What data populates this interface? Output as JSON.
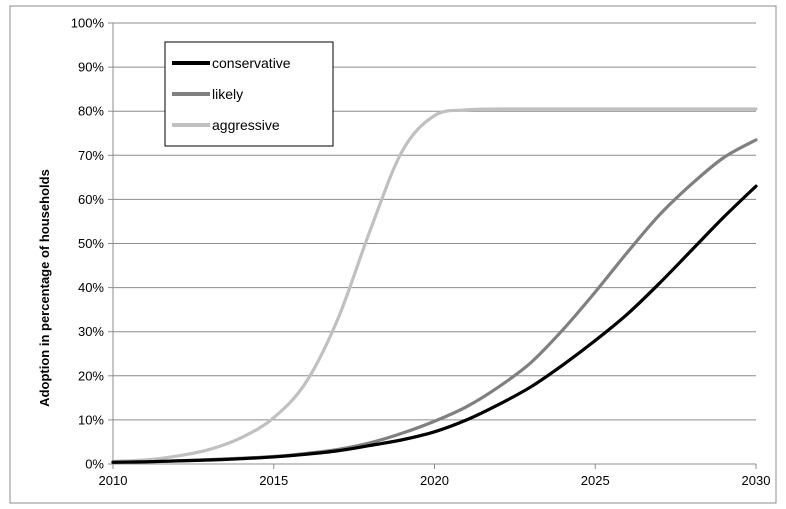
{
  "chart_data": {
    "type": "line",
    "title": "",
    "xlabel": "",
    "ylabel": "Adoption in percentage of households",
    "xlim": [
      2010,
      2030
    ],
    "ylim": [
      0,
      100
    ],
    "x_ticks": [
      2010,
      2015,
      2020,
      2025,
      2030
    ],
    "y_ticks": [
      0,
      10,
      20,
      30,
      40,
      50,
      60,
      70,
      80,
      90,
      100
    ],
    "y_tick_labels": [
      "0%",
      "10%",
      "20%",
      "30%",
      "40%",
      "50%",
      "60%",
      "70%",
      "80%",
      "90%",
      "100%"
    ],
    "grid": "horizontal",
    "legend": "top-left",
    "x": [
      2010,
      2011,
      2012,
      2013,
      2014,
      2015,
      2016,
      2017,
      2018,
      2019,
      2020,
      2021,
      2022,
      2023,
      2024,
      2025,
      2026,
      2027,
      2028,
      2029,
      2030
    ],
    "series": [
      {
        "name": "conservative",
        "color": "#000000",
        "values": [
          0.4,
          0.5,
          0.7,
          0.9,
          1.2,
          1.6,
          2.2,
          3.0,
          4.2,
          5.5,
          7.3,
          10.0,
          13.5,
          17.5,
          22.5,
          28.0,
          34.0,
          41.0,
          48.5,
          56.0,
          63.0
        ]
      },
      {
        "name": "likely",
        "color": "#808080",
        "values": [
          0.4,
          0.5,
          0.7,
          1.0,
          1.3,
          1.7,
          2.4,
          3.3,
          4.8,
          7.0,
          9.7,
          13.0,
          17.5,
          23.0,
          30.5,
          39.0,
          48.0,
          56.5,
          63.5,
          69.5,
          73.5
        ]
      },
      {
        "name": "aggressive",
        "color": "#c0c0c0",
        "values": [
          0.6,
          0.9,
          1.8,
          3.3,
          6.0,
          10.5,
          18.5,
          33.0,
          53.0,
          71.0,
          79.0,
          80.3,
          80.5,
          80.5,
          80.5,
          80.5,
          80.5,
          80.5,
          80.5,
          80.5,
          80.5
        ]
      }
    ]
  }
}
